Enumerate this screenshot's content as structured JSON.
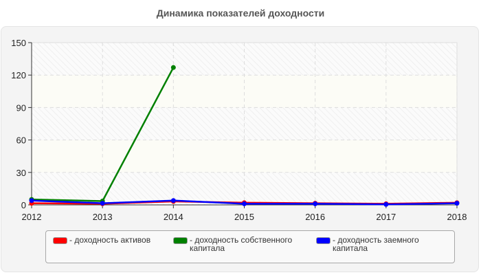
{
  "chart_data": {
    "type": "line",
    "title": "Динамика показателей доходности",
    "xlabel": "",
    "ylabel": "",
    "x": [
      "2012",
      "2013",
      "2014",
      "2015",
      "2016",
      "2017",
      "2018"
    ],
    "ylim": [
      0,
      150
    ],
    "yticks": [
      0,
      30,
      60,
      90,
      120,
      150
    ],
    "grid": true,
    "legend_position": "bottom",
    "series": [
      {
        "name": "- доходность активов",
        "color": "#ff0000",
        "values": [
          1.5,
          1.0,
          3.2,
          2.0,
          1.5,
          1.0,
          2.0
        ]
      },
      {
        "name": "- доходность собственного\nкапитала",
        "color": "#008000",
        "values": [
          5.0,
          3.5,
          127.0,
          null,
          null,
          null,
          null
        ]
      },
      {
        "name": "- доходность заемного\nкапитала",
        "color": "#0000ff",
        "values": [
          4.0,
          1.5,
          4.0,
          1.0,
          1.0,
          0.5,
          1.5
        ]
      }
    ]
  }
}
